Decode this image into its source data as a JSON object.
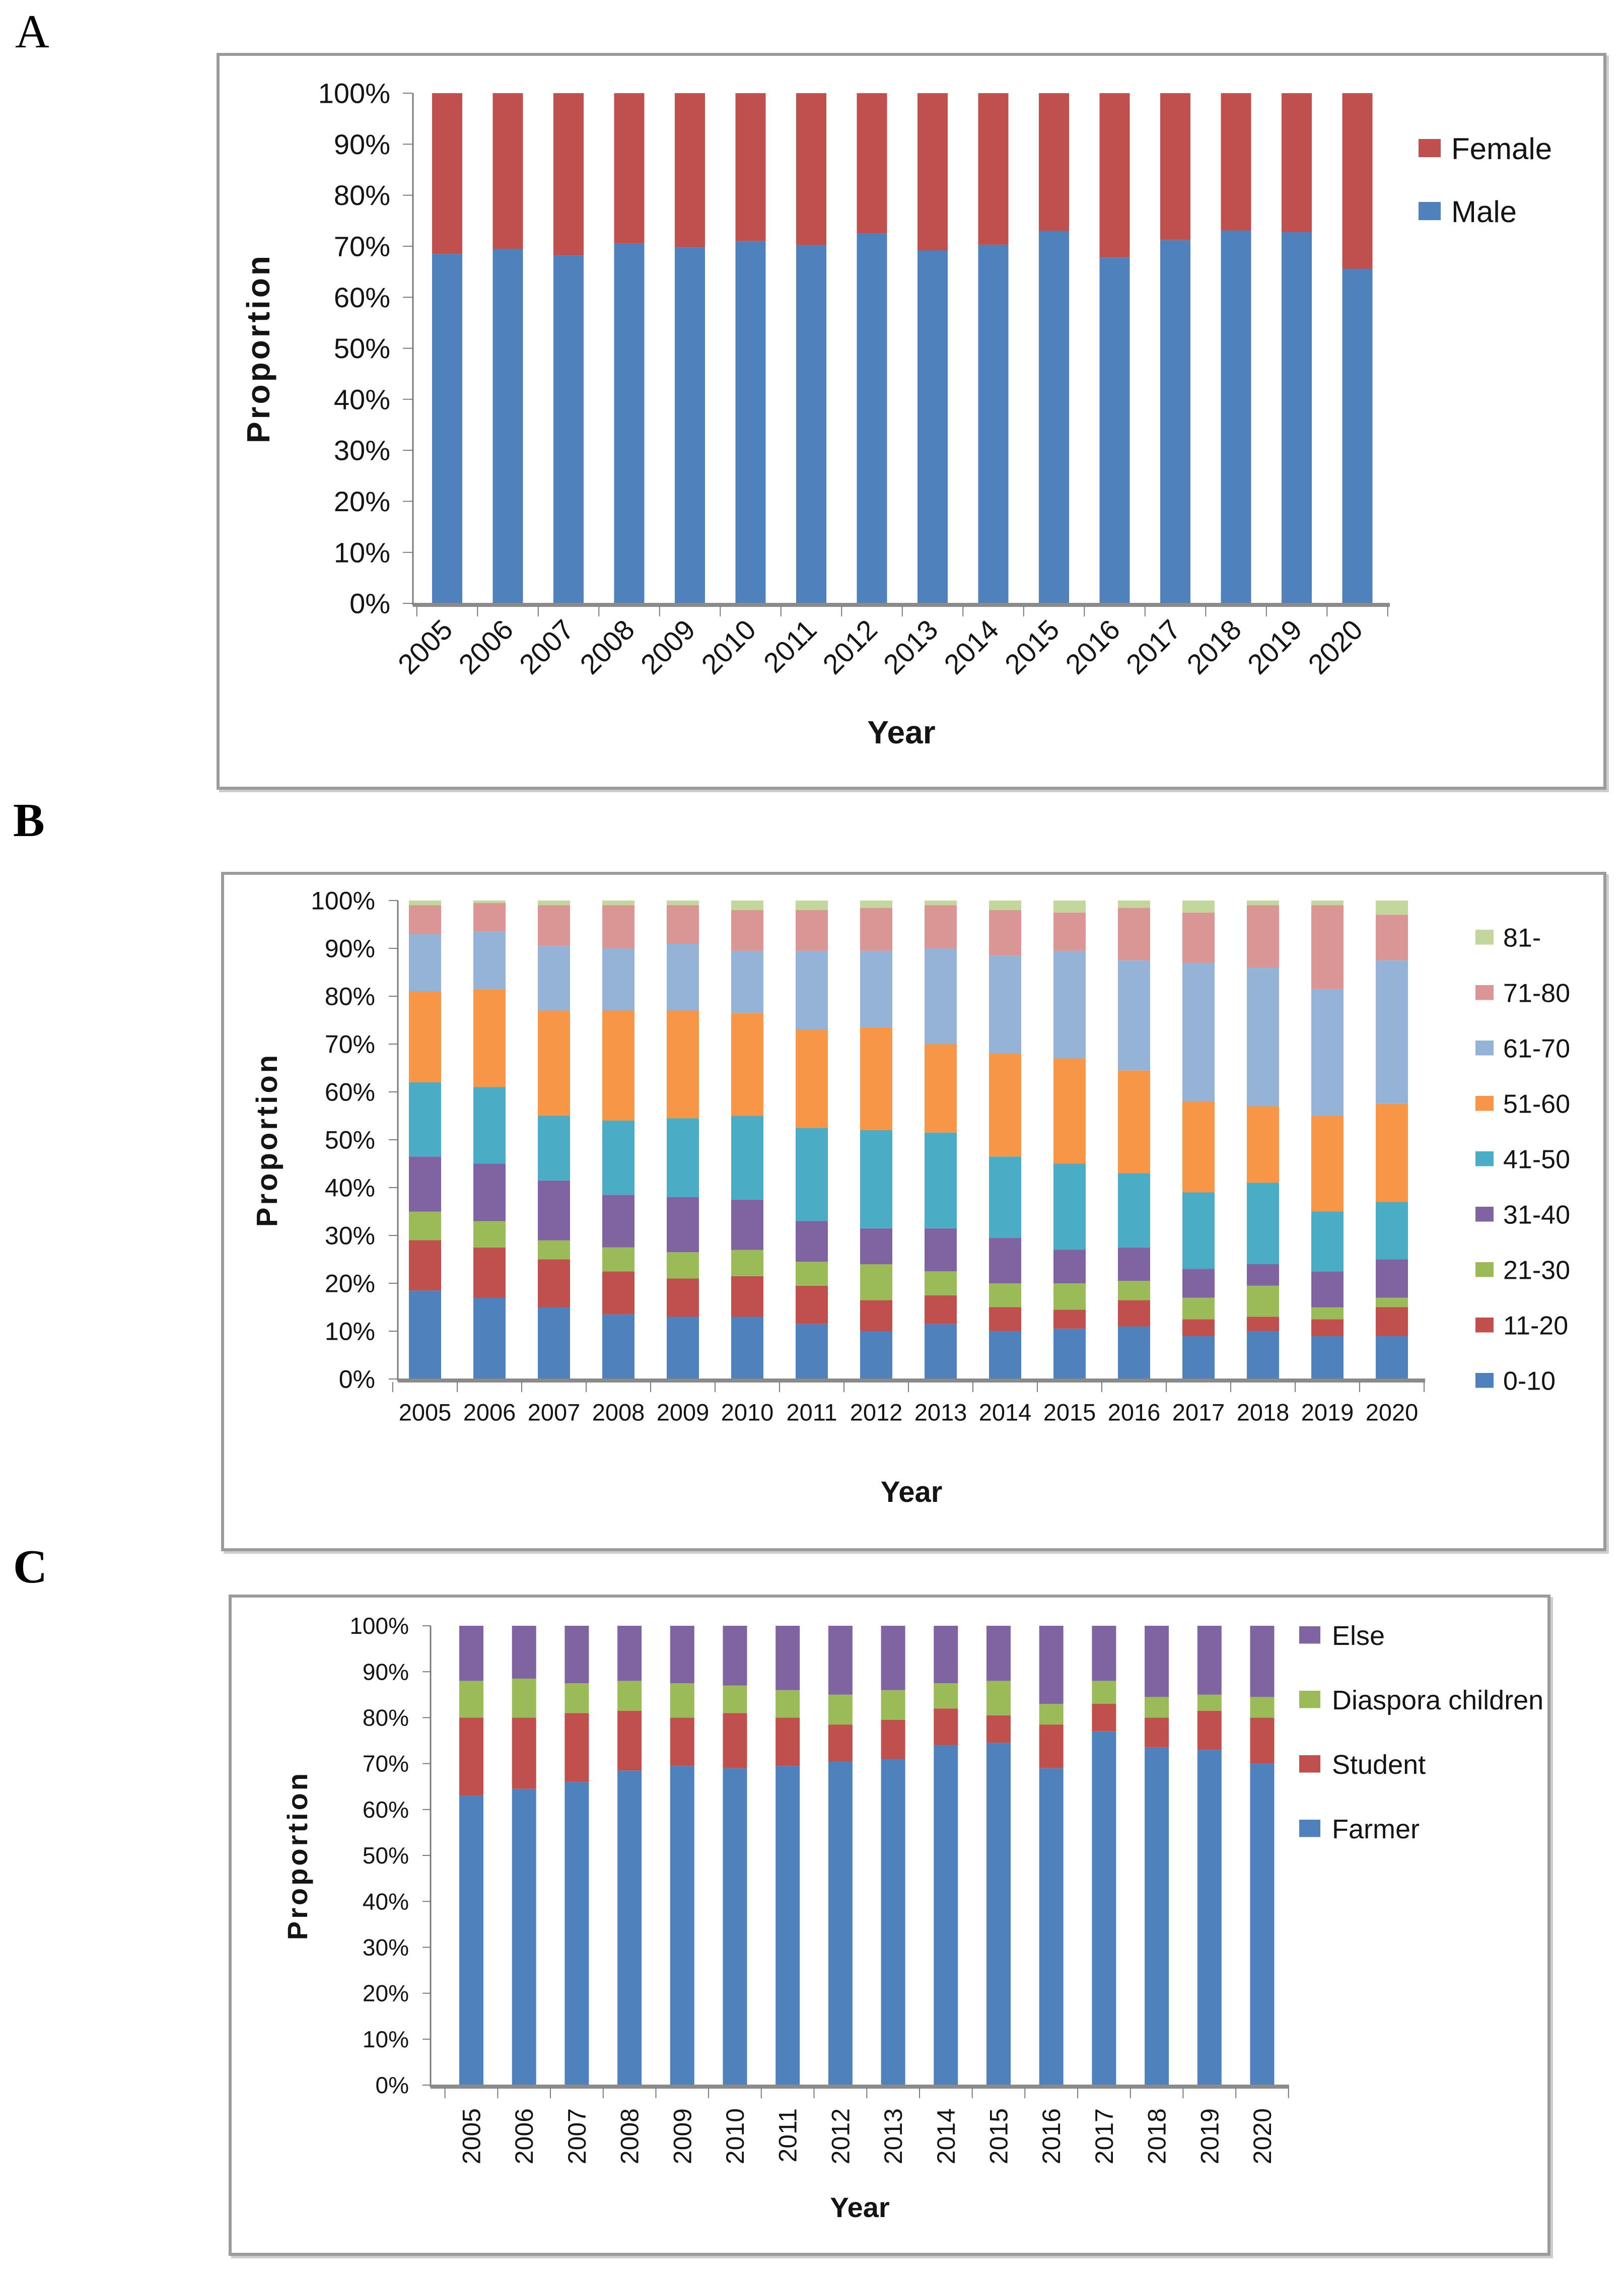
{
  "panels": [
    {
      "label": "A"
    },
    {
      "label": "B"
    },
    {
      "label": "C"
    }
  ],
  "chart_data": [
    {
      "type": "bar",
      "stacked": true,
      "percent_stacked": true,
      "xlabel": "Year",
      "ylabel": "Proportion",
      "ylim": [
        0,
        100
      ],
      "ytick_step": 10,
      "ytick_format": "percent",
      "grid": false,
      "legend_position": "right",
      "legend_order": "reversed",
      "categories": [
        "2005",
        "2006",
        "2007",
        "2008",
        "2009",
        "2010",
        "2011",
        "2012",
        "2013",
        "2014",
        "2015",
        "2016",
        "2017",
        "2018",
        "2019",
        "2020"
      ],
      "series": [
        {
          "name": "Male",
          "color": "#4F81BD",
          "values": [
            68.5,
            69.5,
            68.2,
            70.5,
            69.8,
            71.0,
            70.2,
            72.5,
            69.2,
            70.3,
            73.0,
            67.8,
            71.2,
            73.1,
            72.8,
            65.6
          ]
        },
        {
          "name": "Female",
          "color": "#C0504D",
          "values": [
            31.5,
            30.5,
            31.8,
            29.5,
            30.2,
            29.0,
            29.8,
            27.5,
            30.8,
            29.7,
            27.0,
            32.2,
            28.8,
            26.9,
            27.2,
            34.4
          ]
        }
      ]
    },
    {
      "type": "bar",
      "stacked": true,
      "percent_stacked": true,
      "xlabel": "Year",
      "ylabel": "Proportion",
      "ylim": [
        0,
        100
      ],
      "ytick_step": 10,
      "ytick_format": "percent",
      "grid": false,
      "legend_position": "right",
      "legend_order": "reversed",
      "categories": [
        "2005",
        "2006",
        "2007",
        "2008",
        "2009",
        "2010",
        "2011",
        "2012",
        "2013",
        "2014",
        "2015",
        "2016",
        "2017",
        "2018",
        "2019",
        "2020"
      ],
      "series": [
        {
          "name": "0-10",
          "color": "#4F81BD",
          "values": [
            18.5,
            17.0,
            15.0,
            13.5,
            13.0,
            13.0,
            11.5,
            10.0,
            11.5,
            10.0,
            10.5,
            11.0,
            9.0,
            10.0,
            9.0,
            9.0
          ]
        },
        {
          "name": "11-20",
          "color": "#C0504D",
          "values": [
            10.5,
            10.5,
            10.0,
            9.0,
            8.0,
            8.5,
            8.0,
            6.5,
            6.0,
            5.0,
            4.0,
            5.5,
            3.5,
            3.0,
            3.5,
            6.0
          ]
        },
        {
          "name": "21-30",
          "color": "#9BBB59",
          "values": [
            6.0,
            5.5,
            4.0,
            5.0,
            5.5,
            5.5,
            5.0,
            7.5,
            5.0,
            5.0,
            5.5,
            4.0,
            4.5,
            6.5,
            2.5,
            2.0
          ]
        },
        {
          "name": "31-40",
          "color": "#8064A2",
          "values": [
            11.5,
            12.0,
            12.5,
            11.0,
            11.5,
            10.5,
            8.5,
            7.5,
            9.0,
            9.5,
            7.0,
            7.0,
            6.0,
            4.5,
            7.5,
            8.0
          ]
        },
        {
          "name": "41-50",
          "color": "#4BACC6",
          "values": [
            15.5,
            16.0,
            13.5,
            15.5,
            16.5,
            17.5,
            19.5,
            20.5,
            20.0,
            17.0,
            18.0,
            15.5,
            16.0,
            17.0,
            12.5,
            12.0
          ]
        },
        {
          "name": "51-60",
          "color": "#F79646",
          "values": [
            19.0,
            20.5,
            22.0,
            23.0,
            22.5,
            21.5,
            20.5,
            21.5,
            18.5,
            21.5,
            22.0,
            21.5,
            19.0,
            16.0,
            20.0,
            20.5
          ]
        },
        {
          "name": "61-70",
          "color": "#95B3D7",
          "values": [
            12.0,
            12.0,
            13.5,
            13.0,
            14.0,
            13.0,
            16.5,
            16.0,
            20.0,
            20.5,
            22.5,
            23.0,
            29.0,
            29.0,
            26.5,
            30.0
          ]
        },
        {
          "name": "71-80",
          "color": "#D99694",
          "values": [
            6.0,
            6.0,
            8.5,
            9.0,
            8.0,
            8.5,
            8.5,
            9.0,
            9.0,
            9.5,
            8.0,
            11.0,
            10.5,
            13.0,
            17.5,
            9.5
          ]
        },
        {
          "name": "81-",
          "color": "#C3D69B",
          "values": [
            1.0,
            0.5,
            1.0,
            1.0,
            1.0,
            2.0,
            2.0,
            1.5,
            1.0,
            2.0,
            2.5,
            1.5,
            2.5,
            1.0,
            1.0,
            3.0
          ]
        }
      ]
    },
    {
      "type": "bar",
      "stacked": true,
      "percent_stacked": true,
      "xlabel": "Year",
      "ylabel": "Proportion",
      "ylim": [
        0,
        100
      ],
      "ytick_step": 10,
      "ytick_format": "percent",
      "grid": false,
      "legend_position": "right",
      "legend_order": "reversed",
      "categories": [
        "2005",
        "2006",
        "2007",
        "2008",
        "2009",
        "2010",
        "2011",
        "2012",
        "2013",
        "2014",
        "2015",
        "2016",
        "2017",
        "2018",
        "2019",
        "2020"
      ],
      "series": [
        {
          "name": "Farmer",
          "color": "#4F81BD",
          "values": [
            63.0,
            64.5,
            66.0,
            68.5,
            69.5,
            69.0,
            69.5,
            70.5,
            71.0,
            74.0,
            74.5,
            69.0,
            77.0,
            73.5,
            73.0,
            70.0
          ]
        },
        {
          "name": "Student",
          "color": "#C0504D",
          "values": [
            17.0,
            15.5,
            15.0,
            13.0,
            10.5,
            12.0,
            10.5,
            8.0,
            8.5,
            8.0,
            6.0,
            9.5,
            6.0,
            6.5,
            8.5,
            10.0
          ]
        },
        {
          "name": "Diaspora children",
          "color": "#9BBB59",
          "values": [
            8.0,
            8.5,
            6.5,
            6.5,
            7.5,
            6.0,
            6.0,
            6.5,
            6.5,
            5.5,
            7.5,
            4.5,
            5.0,
            4.5,
            3.5,
            4.5
          ]
        },
        {
          "name": "Else",
          "color": "#8064A2",
          "values": [
            12.0,
            11.5,
            12.5,
            12.0,
            12.5,
            13.0,
            14.0,
            15.0,
            14.0,
            12.5,
            12.0,
            17.0,
            12.0,
            15.5,
            15.0,
            15.5
          ]
        }
      ]
    }
  ]
}
